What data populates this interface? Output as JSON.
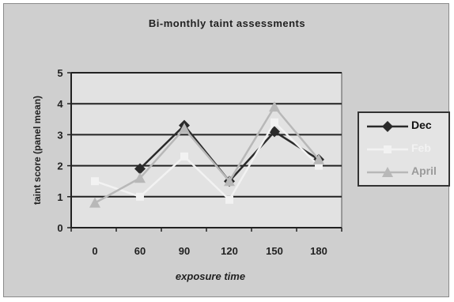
{
  "chart_data": {
    "type": "line",
    "title": "Bi-monthly taint assessments",
    "xlabel": "exposure time",
    "ylabel": "taint score (panel mean)",
    "categories": [
      "0",
      "60",
      "90",
      "120",
      "150",
      "180"
    ],
    "ylim": [
      0,
      5
    ],
    "yticks": [
      "0",
      "1",
      "2",
      "3",
      "4",
      "5"
    ],
    "grid": "horizontal",
    "legend_position": "right",
    "series": [
      {
        "name": "Dec",
        "values": [
          null,
          1.9,
          3.3,
          1.5,
          3.1,
          2.2
        ],
        "color": "#2a2a2a",
        "marker": "diamond"
      },
      {
        "name": "Feb",
        "values": [
          1.5,
          1.0,
          2.3,
          0.9,
          3.4,
          2.0
        ],
        "color": "#f2f2f2",
        "marker": "square"
      },
      {
        "name": "April",
        "values": [
          0.8,
          1.6,
          3.2,
          1.5,
          3.9,
          2.2
        ],
        "color": "#b8b8b8",
        "marker": "triangle"
      }
    ]
  }
}
